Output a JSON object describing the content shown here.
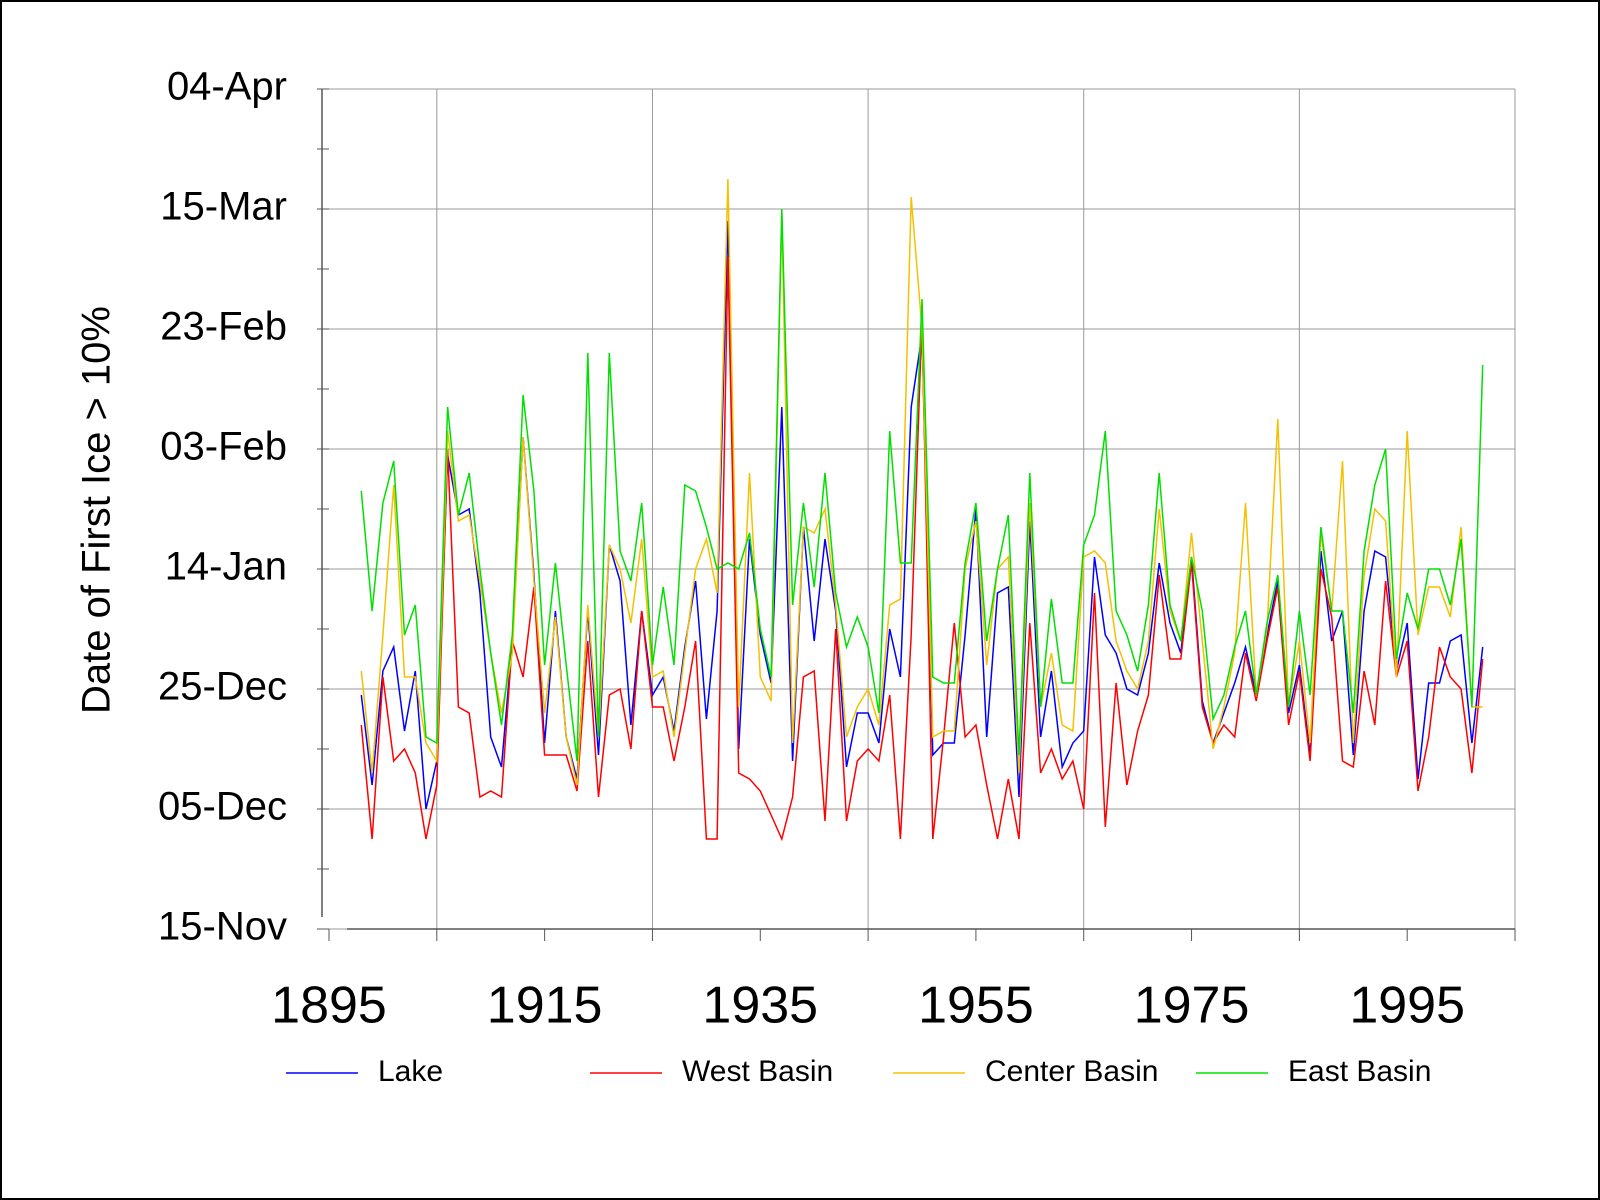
{
  "chart_data": {
    "type": "line",
    "ylabel": "Date of First Ice > 10%",
    "x": [
      1898,
      1899,
      1900,
      1901,
      1902,
      1903,
      1904,
      1905,
      1906,
      1907,
      1908,
      1909,
      1910,
      1911,
      1912,
      1913,
      1914,
      1915,
      1916,
      1917,
      1918,
      1919,
      1920,
      1921,
      1922,
      1923,
      1924,
      1925,
      1926,
      1927,
      1928,
      1929,
      1930,
      1931,
      1932,
      1933,
      1934,
      1935,
      1936,
      1937,
      1938,
      1939,
      1940,
      1941,
      1942,
      1943,
      1944,
      1945,
      1946,
      1947,
      1948,
      1949,
      1950,
      1951,
      1952,
      1953,
      1954,
      1955,
      1956,
      1957,
      1958,
      1959,
      1960,
      1961,
      1962,
      1963,
      1964,
      1965,
      1966,
      1967,
      1968,
      1969,
      1970,
      1971,
      1972,
      1973,
      1974,
      1975,
      1976,
      1977,
      1978,
      1979,
      1980,
      1981,
      1982,
      1983,
      1984,
      1985,
      1986,
      1987,
      1988,
      1989,
      1990,
      1991,
      1992,
      1993,
      1994,
      1995,
      1996,
      1997,
      1998,
      1999,
      2000,
      2001,
      2002
    ],
    "series": [
      {
        "name": "Lake",
        "color": "#0000ff",
        "values": [
          39,
          24,
          43,
          47,
          33,
          43,
          20,
          28,
          79,
          69,
          70,
          56,
          32,
          27,
          48,
          82,
          59,
          31,
          53,
          32,
          25,
          53,
          29,
          64,
          58,
          34,
          53,
          39,
          42,
          33,
          47,
          58,
          35,
          53,
          118,
          30,
          65,
          49,
          41,
          87,
          28,
          67,
          48,
          65,
          53,
          27,
          36,
          36,
          31,
          50,
          42,
          87,
          99,
          29,
          31,
          31,
          49,
          70,
          32,
          56,
          57,
          22,
          68,
          32,
          43,
          27,
          31,
          33,
          62,
          49,
          46,
          40,
          39,
          46,
          61,
          51,
          46,
          62,
          38,
          31,
          36,
          41,
          47,
          39,
          49,
          58,
          36,
          44,
          29,
          63,
          48,
          53,
          29,
          53,
          63,
          62,
          43,
          51,
          25,
          41,
          41,
          48,
          49,
          31,
          47
        ]
      },
      {
        "name": "West Basin",
        "color": "#ff0000",
        "values": [
          34,
          15,
          42,
          28,
          30,
          26,
          15,
          24,
          80,
          37,
          36,
          22,
          23,
          22,
          48,
          42,
          57,
          29,
          29,
          29,
          23,
          48,
          22,
          39,
          40,
          30,
          53,
          37,
          37,
          28,
          37,
          48,
          15,
          15,
          112,
          26,
          25,
          23,
          19,
          15,
          22,
          42,
          43,
          18,
          50,
          18,
          28,
          30,
          28,
          39,
          15,
          49,
          102,
          15,
          32,
          51,
          32,
          34,
          24,
          15,
          25,
          15,
          51,
          26,
          30,
          25,
          28,
          20,
          56,
          17,
          41,
          24,
          33,
          39,
          59,
          45,
          45,
          61,
          37,
          31,
          34,
          32,
          46,
          38,
          48,
          57,
          34,
          43,
          28,
          60,
          52,
          28,
          27,
          43,
          34,
          58,
          42,
          48,
          23,
          32,
          47,
          42,
          40,
          26,
          45
        ]
      },
      {
        "name": "Center Basin",
        "color": "#f5c000",
        "values": [
          43,
          26,
          49,
          74,
          42,
          42,
          31,
          28,
          83,
          68,
          69,
          58,
          46,
          36,
          46,
          82,
          58,
          36,
          52,
          32,
          24,
          54,
          32,
          64,
          60,
          51,
          65,
          42,
          43,
          32,
          46,
          60,
          65,
          56,
          125,
          37,
          76,
          42,
          38,
          119,
          31,
          67,
          66,
          70,
          54,
          32,
          37,
          40,
          34,
          54,
          55,
          122,
          100,
          32,
          33,
          33,
          60,
          68,
          44,
          60,
          62,
          26,
          71,
          37,
          46,
          34,
          33,
          62,
          63,
          61,
          48,
          43,
          40,
          48,
          70,
          53,
          48,
          66,
          48,
          30,
          37,
          46,
          71,
          39,
          50,
          85,
          37,
          48,
          31,
          66,
          53,
          78,
          31,
          59,
          70,
          68,
          42,
          83,
          49,
          57,
          57,
          52,
          67,
          37,
          37
        ]
      },
      {
        "name": "East Basin",
        "color": "#00e000",
        "values": [
          73,
          53,
          71,
          78,
          49,
          54,
          32,
          31,
          87,
          69,
          76,
          60,
          46,
          34,
          49,
          89,
          73,
          44,
          61,
          44,
          28,
          96,
          32,
          96,
          63,
          58,
          71,
          44,
          57,
          44,
          74,
          73,
          67,
          60,
          61,
          60,
          66,
          50,
          42,
          120,
          54,
          71,
          57,
          76,
          56,
          47,
          52,
          47,
          36,
          83,
          61,
          61,
          105,
          42,
          41,
          41,
          61,
          71,
          48,
          60,
          69,
          29,
          76,
          37,
          55,
          41,
          41,
          64,
          69,
          83,
          53,
          49,
          43,
          54,
          76,
          54,
          48,
          62,
          53,
          35,
          39,
          47,
          53,
          39,
          51,
          59,
          37,
          53,
          39,
          67,
          53,
          53,
          36,
          63,
          74,
          80,
          45,
          56,
          50,
          60,
          60,
          54,
          65,
          37,
          94
        ]
      }
    ],
    "xlim": [
      1895,
      2005
    ],
    "xticks": [
      1895,
      1915,
      1935,
      1955,
      1975,
      1995
    ],
    "xgrid": [
      1905,
      1925,
      1945,
      1965,
      1985,
      2005
    ],
    "ylim": [
      0,
      140
    ],
    "yticks": [
      {
        "value": 0,
        "label": "15-Nov"
      },
      {
        "value": 20,
        "label": "05-Dec"
      },
      {
        "value": 40,
        "label": "25-Dec"
      },
      {
        "value": 60,
        "label": "14-Jan"
      },
      {
        "value": 80,
        "label": "03-Feb"
      },
      {
        "value": 100,
        "label": "23-Feb"
      },
      {
        "value": 120,
        "label": "15-Mar"
      },
      {
        "value": 140,
        "label": "04-Apr"
      }
    ],
    "yminor_ticks": [
      10,
      30,
      50,
      70,
      90,
      110,
      130
    ],
    "grid": true
  }
}
